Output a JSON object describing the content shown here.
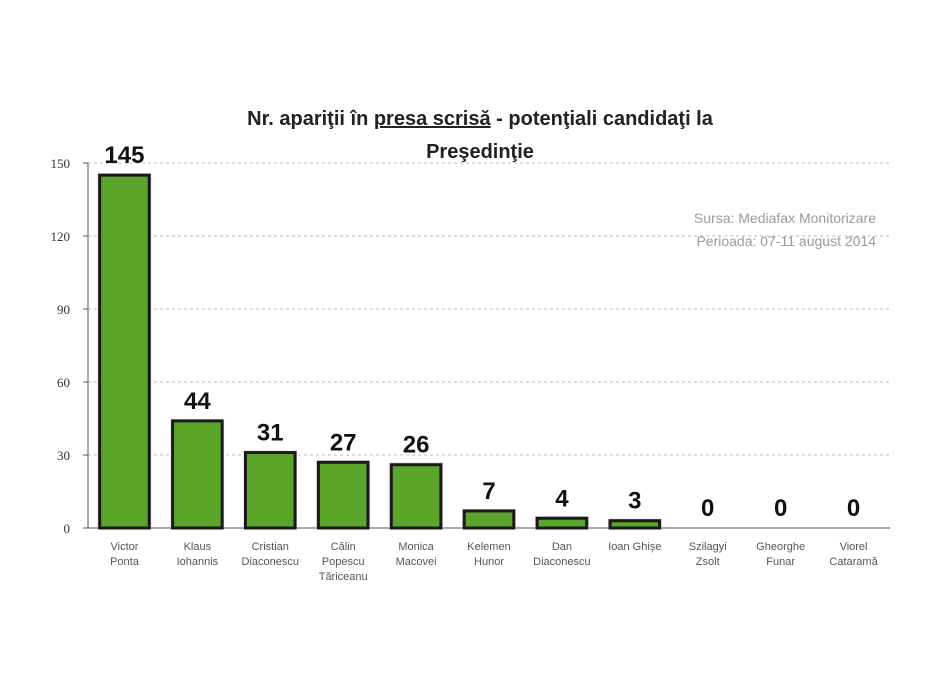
{
  "chart_data": {
    "type": "bar",
    "title_parts": [
      "Nr. apariţii în ",
      "presa scrisă",
      "  - potenţiali candidaţi la"
    ],
    "title_line2": "Preşedinţie",
    "source_line1": "Sursa: Mediafax Monitorizare",
    "source_line2": "Perioada: 07-11 august 2014",
    "categories": [
      [
        "Victor",
        "Ponta"
      ],
      [
        "Klaus",
        "Iohannis"
      ],
      [
        "Cristian",
        "Diaconescu"
      ],
      [
        "Călin",
        "Popescu",
        "Tăriceanu"
      ],
      [
        "Monica",
        "Macovei"
      ],
      [
        "Kelemen",
        "Hunor"
      ],
      [
        "Dan",
        "Diaconescu"
      ],
      [
        "Ioan Ghișe"
      ],
      [
        "Szilagyi",
        "Zsolt"
      ],
      [
        "Gheorghe",
        "Funar"
      ],
      [
        "Viorel",
        "Cataramă"
      ]
    ],
    "values": [
      145,
      44,
      31,
      27,
      26,
      7,
      4,
      3,
      0,
      0,
      0
    ],
    "ylim": [
      0,
      150
    ],
    "yticks": [
      0,
      30,
      60,
      90,
      120,
      150
    ],
    "grid": true,
    "bar_color": "#5aa52a",
    "bar_outline": "#1a1a1a",
    "grid_color": "#bbbbbb"
  }
}
